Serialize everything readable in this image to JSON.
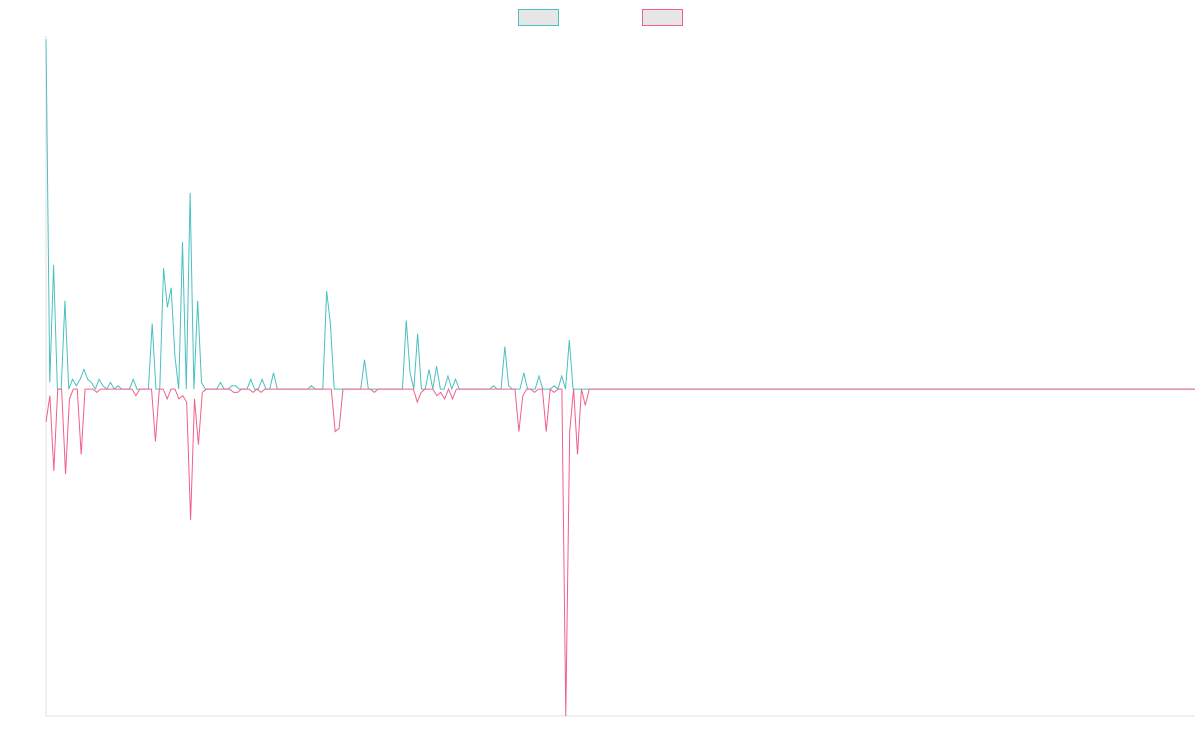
{
  "chart_data": {
    "type": "line",
    "title": "",
    "xlabel": "",
    "ylabel": "",
    "grid": false,
    "legend": {
      "placement": "top-center"
    },
    "ylim": [
      -1.0,
      1.08
    ],
    "series": [
      {
        "name": "",
        "color": "#4bc0c0",
        "fill": "#e6e6e6",
        "values": [
          1.07,
          0.02,
          0.38,
          0.0,
          0.0,
          0.27,
          0.0,
          0.03,
          0.01,
          0.03,
          0.06,
          0.03,
          0.02,
          0.0,
          0.03,
          0.01,
          0.0,
          0.02,
          0.0,
          0.01,
          0.0,
          0.0,
          0.0,
          0.03,
          0.0,
          0.0,
          0.0,
          0.0,
          0.2,
          0.0,
          0.0,
          0.37,
          0.25,
          0.31,
          0.1,
          0.0,
          0.45,
          0.0,
          0.6,
          0.0,
          0.27,
          0.02,
          0.0,
          0.0,
          0.0,
          0.0,
          0.02,
          0.0,
          0.0,
          0.01,
          0.01,
          0.0,
          0.0,
          0.0,
          0.03,
          0.0,
          0.0,
          0.03,
          0.0,
          0.0,
          0.05,
          0.0,
          0.0,
          0.0,
          0.0,
          0.0,
          0.0,
          0.0,
          0.0,
          0.0,
          0.01,
          0.0,
          0.0,
          0.0,
          0.3,
          0.2,
          0.0,
          0.0,
          0.0,
          0.0,
          0.0,
          0.0,
          0.0,
          0.0,
          0.09,
          0.0,
          0.0,
          0.0,
          0.0,
          0.0,
          0.0,
          0.0,
          0.0,
          0.0,
          0.0,
          0.21,
          0.05,
          0.0,
          0.17,
          0.0,
          0.0,
          0.06,
          0.0,
          0.07,
          0.0,
          0.0,
          0.04,
          0.0,
          0.03,
          0.0,
          0.0,
          0.0,
          0.0,
          0.0,
          0.0,
          0.0,
          0.0,
          0.0,
          0.01,
          0.0,
          0.0,
          0.13,
          0.01,
          0.0,
          0.0,
          0.0,
          0.05,
          0.0,
          0.0,
          0.0,
          0.04,
          0.0,
          0.0,
          0.0,
          0.01,
          0.0,
          0.04,
          0.0,
          0.15,
          0.0,
          0.0,
          0.0,
          0.0,
          0.0,
          0.0,
          0.0,
          0.0,
          0.0,
          0.0,
          0.0,
          0.0,
          0.0,
          0.0,
          0.0,
          0.0,
          0.0,
          0.0,
          0.0,
          0.0,
          0.0,
          0.0,
          0.0,
          0.0,
          0.0,
          0.0,
          0.0,
          0.0,
          0.0,
          0.0,
          0.0,
          0.0,
          0.0,
          0.0,
          0.0,
          0.0,
          0.0,
          0.0,
          0.0,
          0.0,
          0.0,
          0.0,
          0.0,
          0.0,
          0.0,
          0.0,
          0.0,
          0.0,
          0.0,
          0.0,
          0.0,
          0.0,
          0.0,
          0.0,
          0.0,
          0.0,
          0.0,
          0.0,
          0.0,
          0.0,
          0.0,
          0.0,
          0.0,
          0.0,
          0.0,
          0.0,
          0.0,
          0.0,
          0.0,
          0.0,
          0.0,
          0.0,
          0.0,
          0.0,
          0.0,
          0.0,
          0.0,
          0.0,
          0.0,
          0.0,
          0.0,
          0.0,
          0.0,
          0.0,
          0.0,
          0.0,
          0.0,
          0.0,
          0.0,
          0.0,
          0.0,
          0.0,
          0.0,
          0.0,
          0.0,
          0.0,
          0.0,
          0.0,
          0.0,
          0.0,
          0.0,
          0.0,
          0.0,
          0.0,
          0.0,
          0.0,
          0.0,
          0.0,
          0.0,
          0.0,
          0.0,
          0.0,
          0.0,
          0.0,
          0.0,
          0.0,
          0.0,
          0.0,
          0.0,
          0.0,
          0.0,
          0.0,
          0.0,
          0.0,
          0.0,
          0.0,
          0.0,
          0.0,
          0.0,
          0.0,
          0.0,
          0.0,
          0.0,
          0.0,
          0.0,
          0.0,
          0.0,
          0.0,
          0.0,
          0.0,
          0.0,
          0.0,
          0.0,
          0.0,
          0.0,
          0.0,
          0.0,
          0.0,
          0.0,
          0.0,
          0.0,
          0.0,
          0.0,
          0.0,
          0.0,
          0.0,
          0.0,
          0.0,
          0.0,
          0.0,
          0.0,
          0.0,
          0.0,
          0.0,
          0.0
        ]
      },
      {
        "name": "",
        "color": "#f06088",
        "fill": "#e6e6e6",
        "values": [
          -0.1,
          -0.02,
          -0.25,
          0.0,
          0.0,
          -0.26,
          -0.03,
          0.0,
          0.0,
          -0.2,
          0.0,
          0.0,
          0.0,
          -0.01,
          0.0,
          0.0,
          0.0,
          0.0,
          0.0,
          0.0,
          0.0,
          0.0,
          0.0,
          -0.02,
          0.0,
          0.0,
          0.0,
          0.0,
          -0.16,
          0.0,
          0.0,
          -0.03,
          0.0,
          0.0,
          -0.03,
          -0.02,
          -0.04,
          -0.4,
          -0.03,
          -0.17,
          -0.01,
          0.0,
          0.0,
          0.0,
          0.0,
          0.0,
          0.0,
          0.0,
          -0.01,
          -0.01,
          0.0,
          0.0,
          0.0,
          -0.01,
          0.0,
          -0.01,
          0.0,
          0.0,
          0.0,
          0.0,
          0.0,
          0.0,
          0.0,
          0.0,
          0.0,
          0.0,
          0.0,
          0.0,
          0.0,
          0.0,
          0.0,
          0.0,
          0.0,
          0.0,
          -0.13,
          -0.12,
          0.0,
          0.0,
          0.0,
          0.0,
          0.0,
          0.0,
          0.0,
          0.0,
          -0.01,
          0.0,
          0.0,
          0.0,
          0.0,
          0.0,
          0.0,
          0.0,
          0.0,
          0.0,
          0.0,
          -0.04,
          -0.01,
          0.0,
          0.0,
          0.0,
          -0.02,
          -0.01,
          -0.03,
          0.0,
          -0.03,
          0.0,
          0.0,
          0.0,
          0.0,
          0.0,
          0.0,
          0.0,
          0.0,
          0.0,
          0.0,
          0.0,
          0.0,
          0.0,
          0.0,
          0.0,
          0.0,
          -0.13,
          -0.02,
          0.0,
          0.0,
          -0.01,
          0.0,
          0.0,
          -0.13,
          0.0,
          -0.01,
          0.0,
          0.0,
          -1.0,
          -0.13,
          0.0,
          -0.2,
          0.0,
          -0.05,
          0.0,
          0.0,
          0.0,
          0.0,
          0.0,
          0.0,
          0.0,
          0.0,
          0.0,
          0.0,
          0.0,
          0.0,
          0.0,
          0.0,
          0.0,
          0.0,
          0.0,
          0.0,
          0.0,
          0.0,
          0.0,
          0.0,
          0.0,
          0.0,
          0.0,
          0.0,
          0.0,
          0.0,
          0.0,
          0.0,
          0.0,
          0.0,
          0.0,
          0.0,
          0.0,
          0.0,
          0.0,
          0.0,
          0.0,
          0.0,
          0.0,
          0.0,
          0.0,
          0.0,
          0.0,
          0.0,
          0.0,
          0.0,
          0.0,
          0.0,
          0.0,
          0.0,
          0.0,
          0.0,
          0.0,
          0.0,
          0.0,
          0.0,
          0.0,
          0.0,
          0.0,
          0.0,
          0.0,
          0.0,
          0.0,
          0.0,
          0.0,
          0.0,
          0.0,
          0.0,
          0.0,
          0.0,
          0.0,
          0.0,
          0.0,
          0.0,
          0.0,
          0.0,
          0.0,
          0.0,
          0.0,
          0.0,
          0.0,
          0.0,
          0.0,
          0.0,
          0.0,
          0.0,
          0.0,
          0.0,
          0.0,
          0.0,
          0.0,
          0.0,
          0.0,
          0.0,
          0.0,
          0.0,
          0.0,
          0.0,
          0.0,
          0.0,
          0.0,
          0.0,
          0.0,
          0.0,
          0.0,
          0.0,
          0.0,
          0.0,
          0.0,
          0.0,
          0.0,
          0.0,
          0.0,
          0.0,
          0.0,
          0.0,
          0.0,
          0.0,
          0.0,
          0.0,
          0.0,
          0.0,
          0.0,
          0.0,
          0.0,
          0.0,
          0.0,
          0.0,
          0.0,
          0.0,
          0.0,
          0.0,
          0.0,
          0.0,
          0.0,
          0.0,
          0.0,
          0.0,
          0.0,
          0.0,
          0.0,
          0.0,
          0.0,
          0.0,
          0.0,
          0.0,
          0.0,
          0.0,
          0.0,
          0.0,
          0.0,
          0.0,
          0.0,
          0.0
        ]
      }
    ]
  }
}
